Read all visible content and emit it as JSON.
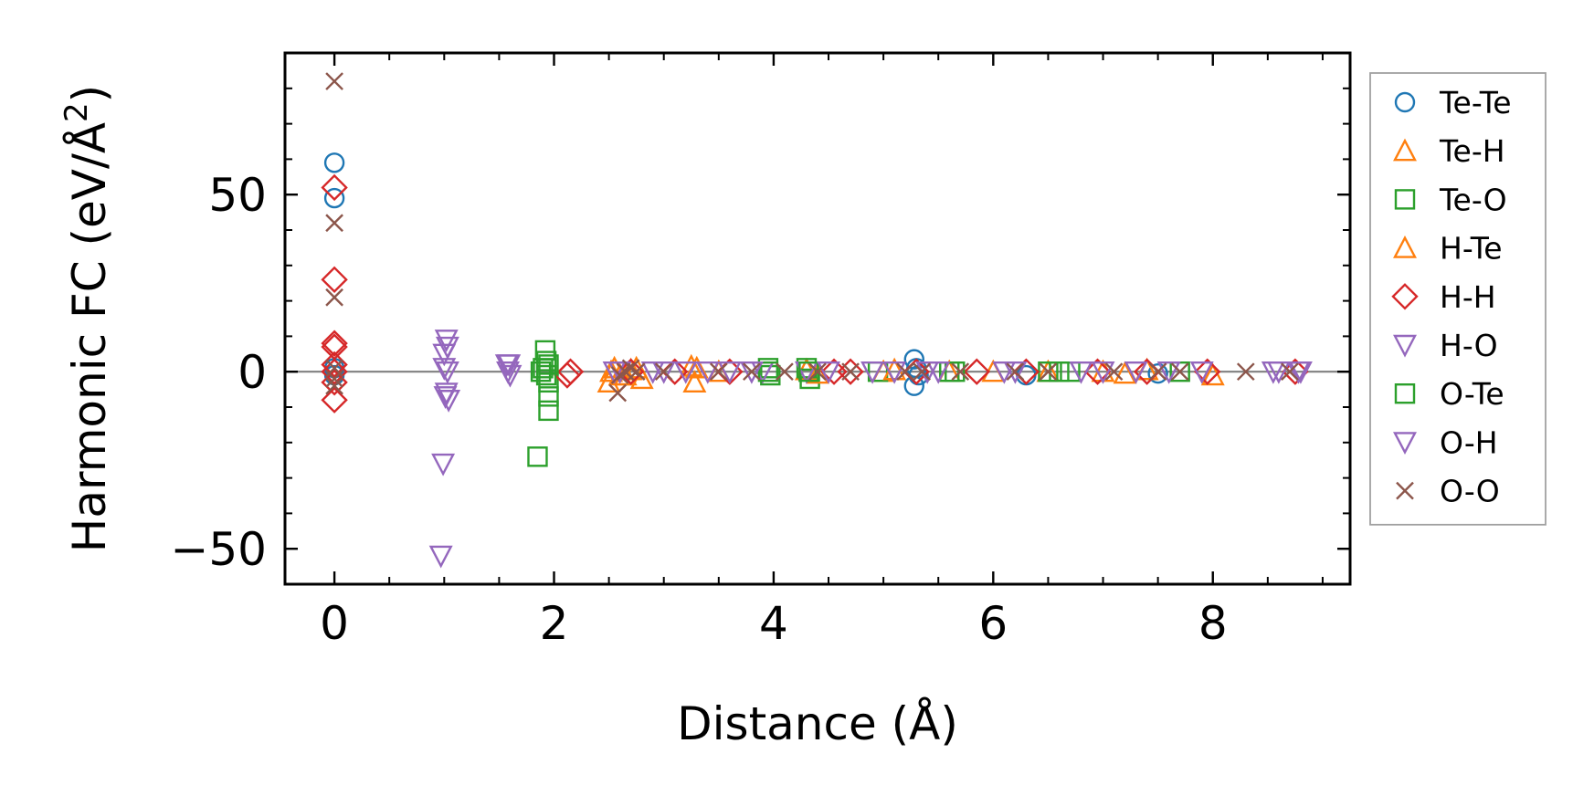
{
  "chart_data": {
    "type": "scatter",
    "title": "",
    "xlabel": "Distance (Å)",
    "ylabel": "Harmonic FC (eV/Å",
    "ylabel_superscript": "2",
    "ylabel_close": ")",
    "xlim": [
      -0.45,
      9.25
    ],
    "ylim": [
      -60,
      90
    ],
    "xticks": [
      0,
      2,
      4,
      6,
      8
    ],
    "xtick_labels": [
      "0",
      "2",
      "4",
      "6",
      "8"
    ],
    "yticks": [
      -50,
      0,
      50
    ],
    "ytick_labels": [
      "−50",
      "0",
      "50"
    ],
    "reference_line_y": 0,
    "legend_position": "right-outside",
    "series": [
      {
        "name": "Te-Te",
        "marker": "circle",
        "color": "#1f77b4",
        "x": [
          0,
          0,
          0,
          0,
          5.28,
          5.28,
          5.3,
          5.32,
          6.3,
          7.5
        ],
        "y": [
          59,
          49,
          1,
          -1,
          3.5,
          -4,
          1,
          -1,
          -1,
          -0.5
        ]
      },
      {
        "name": "Te-H",
        "marker": "triangle-up",
        "color": "#ff7f0e",
        "x": [
          2.5,
          2.55,
          2.6,
          2.7,
          2.8,
          3.25,
          3.28,
          3.5,
          4.3,
          5.0,
          5.6,
          6.5,
          7.0,
          7.2,
          8.0
        ],
        "y": [
          -3,
          1,
          -1,
          0.5,
          -2,
          1.5,
          -3,
          0,
          0.5,
          0,
          0,
          0,
          0,
          -0.5,
          -1
        ]
      },
      {
        "name": "Te-O",
        "marker": "square",
        "color": "#2ca02c",
        "x": [
          1.85,
          1.88,
          1.9,
          1.92,
          1.93,
          1.95,
          1.95,
          1.95,
          3.95,
          3.97,
          4.3,
          4.33,
          4.95,
          5.6,
          6.5,
          6.7,
          7.7
        ],
        "y": [
          -24,
          0,
          1,
          6,
          3,
          -3,
          -7,
          -11,
          1,
          -1,
          1,
          -2,
          0,
          0,
          0,
          0,
          0
        ]
      },
      {
        "name": "H-Te",
        "marker": "triangle-up",
        "color": "#ff7f0e",
        "x": [
          2.52,
          2.65,
          2.75,
          3.3,
          4.4,
          5.1,
          6.0,
          7.4
        ],
        "y": [
          0,
          -1,
          1,
          1,
          -0.5,
          0.5,
          0,
          0.5
        ]
      },
      {
        "name": "H-H",
        "marker": "diamond",
        "color": "#d62728",
        "x": [
          0,
          0,
          0,
          0,
          0,
          0,
          0,
          0,
          2.12,
          2.15,
          2.7,
          3.1,
          3.6,
          4.55,
          4.7,
          5.3,
          5.85,
          6.3,
          6.95,
          7.4,
          7.95,
          8.75
        ],
        "y": [
          52,
          26,
          8,
          7,
          2,
          0,
          -3,
          -8,
          -1,
          0,
          0,
          0,
          0,
          0,
          0,
          0,
          0,
          0,
          0,
          0,
          0,
          0
        ]
      },
      {
        "name": "H-O",
        "marker": "triangle-down",
        "color": "#9467bd",
        "x": [
          0.97,
          1.0,
          1.02,
          1.03,
          1.03,
          1.02,
          0.99,
          1.04,
          1.57,
          1.58,
          1.6,
          2.6,
          2.9,
          3.2,
          3.6,
          3.9,
          4.3,
          4.9,
          5.4,
          6.1,
          6.8,
          7.3,
          7.9,
          8.55,
          8.8
        ],
        "y": [
          -52,
          5,
          9,
          7,
          0,
          -6,
          -26,
          -8,
          2,
          0,
          -1,
          0,
          0,
          0,
          0,
          0,
          0,
          0,
          0,
          0,
          0,
          0,
          0,
          0,
          0
        ]
      },
      {
        "name": "O-Te",
        "marker": "square",
        "color": "#2ca02c",
        "x": [
          1.93,
          1.95,
          3.95,
          4.32,
          5.65,
          6.6
        ],
        "y": [
          -1,
          2,
          0,
          0,
          0,
          0
        ]
      },
      {
        "name": "O-H",
        "marker": "triangle-down",
        "color": "#9467bd",
        "x": [
          1.0,
          1.01,
          1.59,
          2.55,
          3.0,
          3.4,
          3.8,
          4.5,
          5.1,
          5.5,
          6.2,
          7.0,
          7.6,
          8.6,
          8.78
        ],
        "y": [
          1,
          -7,
          2,
          0,
          0,
          0,
          0,
          0,
          0,
          0,
          0,
          0,
          0,
          0,
          0
        ]
      },
      {
        "name": "O-O",
        "marker": "x",
        "color": "#8c564b",
        "x": [
          0,
          0,
          0,
          0,
          0,
          0,
          2.58,
          2.6,
          2.65,
          2.7,
          2.75,
          3.0,
          3.5,
          3.8,
          4.1,
          4.4,
          4.7,
          5.2,
          5.35,
          5.7,
          6.2,
          6.5,
          7.1,
          7.5,
          7.7,
          8.3,
          8.7
        ],
        "y": [
          82,
          42,
          21,
          1,
          -2,
          -4,
          -6,
          -1,
          0,
          1,
          0,
          0,
          0,
          0,
          0,
          0,
          0,
          0,
          0,
          0,
          0,
          0,
          0,
          0,
          0,
          0,
          0
        ]
      }
    ]
  }
}
